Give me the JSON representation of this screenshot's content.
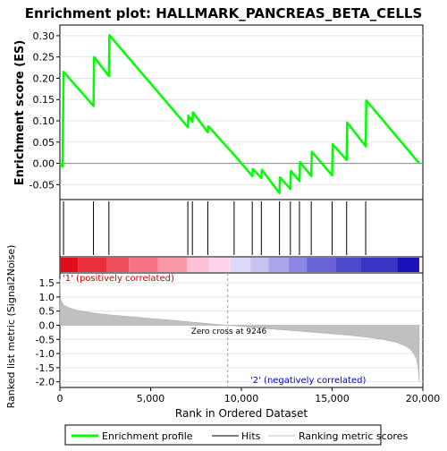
{
  "chart_data": {
    "type": "line",
    "title": "Enrichment plot: HALLMARK_PANCREAS_BETA_CELLS",
    "top_panel": {
      "ylabel": "Enrichment score (ES)",
      "ylim": [
        -0.085,
        0.325
      ],
      "yticks": [
        -0.05,
        0.0,
        0.05,
        0.1,
        0.15,
        0.2,
        0.25,
        0.3
      ],
      "ytick_labels": [
        "-0.05",
        "0.00",
        "0.05",
        "0.10",
        "0.15",
        "0.20",
        "0.25",
        "0.30"
      ],
      "series": [
        {
          "name": "Enrichment profile",
          "color": "#00ff00",
          "x": [
            0,
            150,
            200,
            1850,
            1880,
            2700,
            2730,
            7050,
            7080,
            7300,
            7330,
            8150,
            8180,
            9600,
            10600,
            10630,
            11100,
            11130,
            12100,
            12130,
            12700,
            12730,
            13200,
            13230,
            13850,
            13880,
            15000,
            15030,
            15800,
            15830,
            16850,
            16880,
            19800
          ],
          "y": [
            0.0,
            -0.008,
            0.215,
            0.135,
            0.25,
            0.205,
            0.301,
            0.085,
            0.112,
            0.098,
            0.12,
            0.073,
            0.087,
            0.02,
            -0.03,
            -0.013,
            -0.034,
            -0.015,
            -0.07,
            -0.033,
            -0.06,
            -0.018,
            -0.042,
            0.003,
            -0.03,
            0.027,
            -0.028,
            0.045,
            0.008,
            0.096,
            0.04,
            0.148,
            0.0
          ]
        }
      ]
    },
    "hits": {
      "name": "Hits",
      "positions": [
        200,
        1850,
        2700,
        7050,
        7300,
        8150,
        9600,
        10600,
        11100,
        12100,
        12700,
        13200,
        13850,
        15000,
        15800,
        16850
      ]
    },
    "bottom_panel": {
      "ylabel": "Ranked list metric (Signal2Noise)",
      "xlabel": "Rank in Ordered Dataset",
      "ylim": [
        -2.2,
        1.85
      ],
      "yticks": [
        -2.0,
        -1.5,
        -1.0,
        -0.5,
        0.0,
        0.5,
        1.0,
        1.5
      ],
      "ytick_labels": [
        "-2.0",
        "-1.5",
        "-1.0",
        "-0.5",
        "0.0",
        "0.5",
        "1.0",
        "1.5"
      ],
      "xlim": [
        0,
        20000
      ],
      "xticks": [
        0,
        5000,
        10000,
        15000,
        20000
      ],
      "xtick_labels": [
        "0",
        "5,000",
        "10,000",
        "15,000",
        "20,000"
      ],
      "metric": {
        "name": "Ranking metric scores",
        "color": "#c0c0c0",
        "x": [
          0,
          50,
          200,
          500,
          1000,
          2000,
          3000,
          4000,
          5000,
          6000,
          7000,
          8000,
          9246,
          10000,
          11000,
          12000,
          13000,
          14000,
          15000,
          16000,
          17000,
          17800,
          18500,
          19000,
          19300,
          19500,
          19650,
          19750,
          19800
        ],
        "y": [
          1.62,
          0.9,
          0.72,
          0.62,
          0.52,
          0.42,
          0.35,
          0.3,
          0.24,
          0.19,
          0.13,
          0.07,
          0.0,
          -0.04,
          -0.1,
          -0.15,
          -0.2,
          -0.25,
          -0.3,
          -0.36,
          -0.43,
          -0.5,
          -0.6,
          -0.72,
          -0.85,
          -1.0,
          -1.2,
          -1.55,
          -2.0
        ]
      },
      "zero_cross_rank": 9246,
      "annotations": {
        "zero_cross": "Zero cross at 9246",
        "positive": "'1' (positively correlated)",
        "negative": "'2' (negatively correlated)"
      },
      "positive_color": "#cc0000",
      "negative_color": "#0000cc"
    },
    "color_band": {
      "segments": [
        {
          "end": 1000,
          "color": "#e00d1a"
        },
        {
          "end": 2600,
          "color": "#ea2e3c"
        },
        {
          "end": 3800,
          "color": "#f0505e"
        },
        {
          "end": 5400,
          "color": "#f77282"
        },
        {
          "end": 7000,
          "color": "#fb98a8"
        },
        {
          "end": 8200,
          "color": "#fdbfd6"
        },
        {
          "end": 9400,
          "color": "#fdd2ea"
        },
        {
          "end": 10500,
          "color": "#dcd8f8"
        },
        {
          "end": 11500,
          "color": "#c8c4f2"
        },
        {
          "end": 12600,
          "color": "#aaa6ec"
        },
        {
          "end": 13600,
          "color": "#8c86e4"
        },
        {
          "end": 15200,
          "color": "#6a64d8"
        },
        {
          "end": 16600,
          "color": "#4e48cc"
        },
        {
          "end": 18600,
          "color": "#3a33c4"
        },
        {
          "end": 19800,
          "color": "#1c10b8"
        }
      ]
    },
    "legend": {
      "items": [
        {
          "label": "Enrichment profile",
          "color": "#00ff00"
        },
        {
          "label": "Hits",
          "color": "#000000"
        },
        {
          "label": "Ranking metric scores",
          "color": "#c0c0c0"
        }
      ]
    }
  }
}
